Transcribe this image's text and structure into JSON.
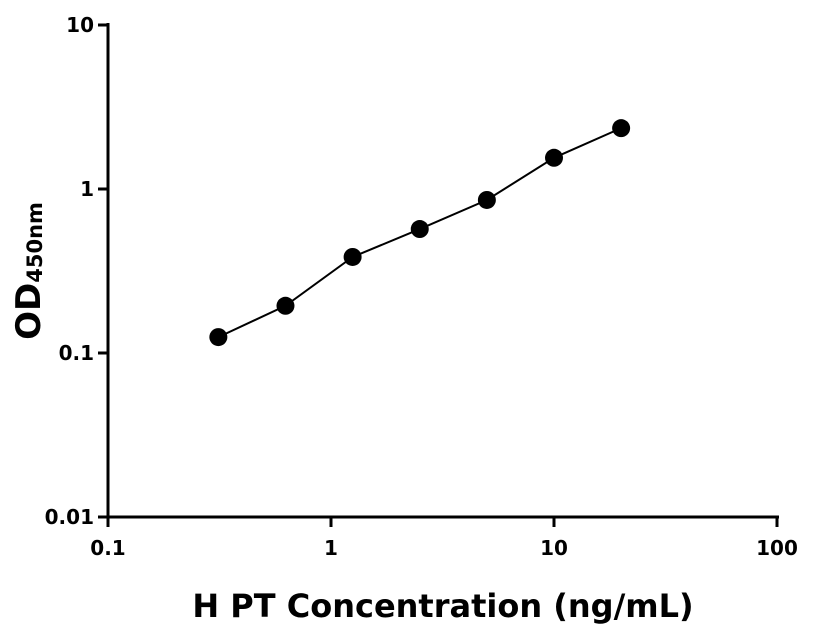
{
  "chart_data": {
    "type": "scatter",
    "x_label": "H PT Concentration (ng/mL)",
    "y_label": "OD",
    "y_label_subscript": "450nm",
    "x": [
      0.3125,
      0.625,
      1.25,
      2.5,
      5,
      10,
      20
    ],
    "series": [
      {
        "color": "#000000",
        "values": [
          0.125,
          0.194,
          0.385,
          0.57,
          0.857,
          1.55,
          2.35
        ]
      }
    ],
    "x_log": true,
    "y_log": true,
    "xlim": [
      0.1,
      100
    ],
    "xticks": [
      0.1,
      1,
      10,
      100
    ],
    "ylim": [
      0.01,
      10
    ],
    "yticks": [
      0.01,
      0.1,
      1,
      10
    ],
    "line": true
  }
}
